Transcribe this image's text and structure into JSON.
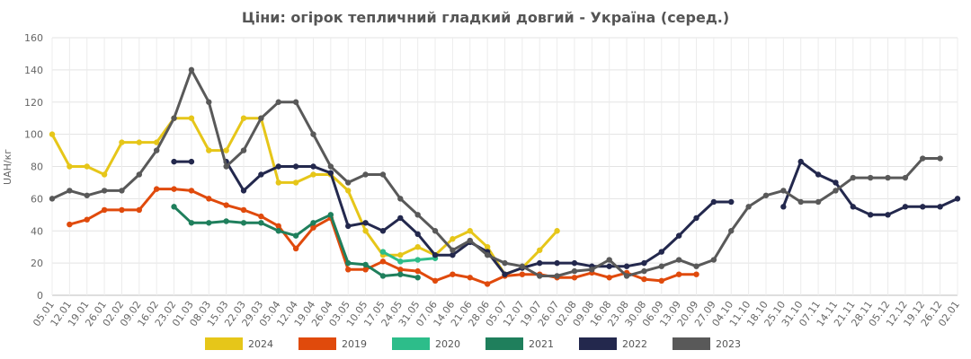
{
  "chart_data": {
    "type": "line",
    "title": "Ціни: огірок тепличний гладкий довгий - Україна (серед.)",
    "ylabel": "UAH/кг",
    "xlabel": "",
    "ylim": [
      0,
      160
    ],
    "yticks": [
      0,
      20,
      40,
      60,
      80,
      100,
      120,
      140,
      160
    ],
    "grid": true,
    "legend_position": "bottom",
    "categories": [
      "05.01",
      "12.01",
      "19.01",
      "26.01",
      "02.02",
      "09.02",
      "16.02",
      "23.02",
      "01.03",
      "08.03",
      "15.03",
      "22.03",
      "29.03",
      "05.04",
      "12.04",
      "19.04",
      "26.04",
      "03.05",
      "10.05",
      "17.05",
      "24.05",
      "31.05",
      "07.06",
      "14.06",
      "21.06",
      "28.06",
      "05.07",
      "12.07",
      "19.07",
      "26.07",
      "02.08",
      "09.08",
      "16.08",
      "23.08",
      "30.08",
      "06.09",
      "13.09",
      "20.09",
      "27.09",
      "04.10",
      "11.10",
      "18.10",
      "25.10",
      "31.10",
      "07.11",
      "14.11",
      "21.11",
      "28.11",
      "05.12",
      "12.12",
      "19.12",
      "26.12",
      "02.01"
    ],
    "series": [
      {
        "name": "2024",
        "color": "#e6c619",
        "values": [
          100,
          80,
          80,
          75,
          95,
          95,
          95,
          110,
          110,
          90,
          90,
          110,
          110,
          70,
          70,
          75,
          75,
          65,
          40,
          25,
          25,
          30,
          25,
          35,
          40,
          30,
          13,
          17,
          28,
          40,
          null,
          null,
          null,
          null,
          null,
          null,
          null,
          null,
          null,
          null,
          null,
          null,
          null,
          null,
          null,
          null,
          null,
          null,
          null,
          null,
          null,
          null,
          null
        ]
      },
      {
        "name": "2019",
        "color": "#e04a0c",
        "values": [
          null,
          44,
          47,
          53,
          53,
          53,
          66,
          66,
          65,
          60,
          56,
          53,
          49,
          43,
          29,
          42,
          48,
          16,
          16,
          21,
          16,
          15,
          9,
          13,
          11,
          7,
          12,
          13,
          13,
          11,
          11,
          14,
          11,
          14,
          10,
          9,
          13,
          13,
          null,
          null,
          null,
          null,
          null,
          null,
          null,
          null,
          null,
          null,
          null,
          null,
          null,
          null,
          null
        ]
      },
      {
        "name": "2020",
        "color": "#2dbd8a",
        "values": [
          null,
          null,
          null,
          null,
          null,
          null,
          null,
          null,
          null,
          null,
          null,
          null,
          null,
          null,
          null,
          null,
          null,
          null,
          null,
          27,
          21,
          22,
          23,
          null,
          null,
          null,
          null,
          null,
          null,
          null,
          null,
          null,
          null,
          null,
          null,
          null,
          null,
          null,
          null,
          null,
          null,
          null,
          null,
          null,
          null,
          null,
          null,
          null,
          null,
          null,
          null,
          null,
          null
        ]
      },
      {
        "name": "2021",
        "color": "#1f7f5c",
        "values": [
          null,
          null,
          null,
          null,
          null,
          null,
          null,
          55,
          45,
          45,
          46,
          45,
          45,
          40,
          37,
          45,
          50,
          20,
          19,
          12,
          13,
          11,
          null,
          null,
          null,
          null,
          null,
          null,
          null,
          null,
          null,
          null,
          null,
          null,
          null,
          null,
          null,
          null,
          null,
          null,
          null,
          null,
          null,
          null,
          null,
          null,
          null,
          null,
          null,
          null,
          null,
          null,
          null
        ]
      },
      {
        "name": "2022",
        "color": "#23284d",
        "values": [
          null,
          null,
          null,
          null,
          null,
          null,
          null,
          83,
          83,
          null,
          83,
          65,
          75,
          80,
          80,
          80,
          76,
          43,
          45,
          40,
          48,
          38,
          25,
          25,
          33,
          27,
          13,
          17,
          20,
          20,
          20,
          18,
          18,
          18,
          20,
          27,
          37,
          48,
          58,
          58,
          null,
          null,
          55,
          83,
          75,
          70,
          55,
          50,
          50,
          55,
          55,
          55,
          60
        ]
      },
      {
        "name": "2023",
        "color": "#595959",
        "values": [
          60,
          65,
          62,
          65,
          65,
          75,
          90,
          110,
          140,
          120,
          80,
          90,
          110,
          120,
          120,
          100,
          80,
          70,
          75,
          75,
          60,
          50,
          40,
          28,
          34,
          25,
          20,
          18,
          12,
          12,
          15,
          16,
          22,
          12,
          15,
          18,
          22,
          18,
          22,
          40,
          55,
          62,
          65,
          58,
          58,
          65,
          73,
          73,
          73,
          73,
          85,
          85,
          null
        ]
      }
    ]
  }
}
